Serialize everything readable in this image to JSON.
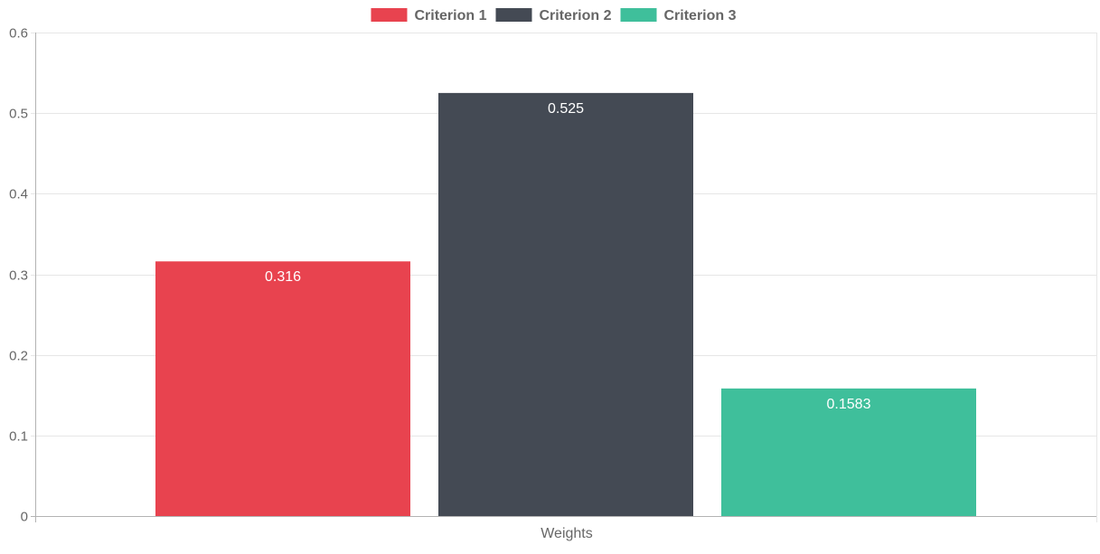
{
  "chart_data": {
    "type": "bar",
    "categories": [
      "Weights"
    ],
    "series": [
      {
        "name": "Criterion 1",
        "values": [
          0.316
        ],
        "color": "#e8434f"
      },
      {
        "name": "Criterion 2",
        "values": [
          0.525
        ],
        "color": "#444a54"
      },
      {
        "name": "Criterion 3",
        "values": [
          0.1583
        ],
        "color": "#3fbf9b"
      }
    ],
    "data_labels": [
      "0.316",
      "0.525",
      "0.1583"
    ],
    "ylim": [
      0,
      0.6
    ],
    "yticks": [
      "0",
      "0.1",
      "0.2",
      "0.3",
      "0.4",
      "0.5",
      "0.6"
    ],
    "xlabel": "",
    "ylabel": "",
    "title": "",
    "grid": true,
    "legend_position": "top-center"
  }
}
